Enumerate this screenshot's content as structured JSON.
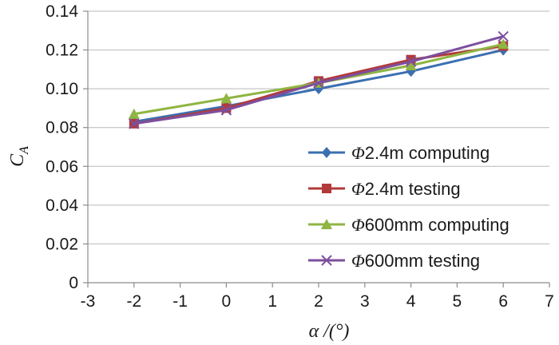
{
  "chart_data": {
    "type": "line",
    "title": "",
    "xlabel": "α /(°)",
    "ylabel": "C_A",
    "ylabel_main": "C",
    "ylabel_sub": "A",
    "xlim": [
      -3,
      7
    ],
    "ylim": [
      0,
      0.14
    ],
    "x_ticks": [
      -3,
      -2,
      -1,
      0,
      1,
      2,
      3,
      4,
      5,
      6,
      7
    ],
    "x_tick_labels": [
      "-3",
      "-2",
      "-1",
      "0",
      "1",
      "2",
      "3",
      "4",
      "5",
      "6",
      "7"
    ],
    "y_ticks": [
      0,
      0.02,
      0.04,
      0.06,
      0.08,
      0.1,
      0.12,
      0.14
    ],
    "y_tick_labels": [
      "0",
      "0.02",
      "0.04",
      "0.06",
      "0.08",
      "0.10",
      "0.12",
      "0.14"
    ],
    "grid": true,
    "legend_position": "bottom-right",
    "x": [
      -2,
      0,
      2,
      4,
      6
    ],
    "series": [
      {
        "name": "Φ2.4m computing",
        "name_symbol": "Φ",
        "name_rest": "2.4m computing",
        "color": "#3b6fb0",
        "marker": "diamond",
        "values": [
          0.083,
          0.091,
          0.1,
          0.109,
          0.12
        ]
      },
      {
        "name": "Φ2.4m testing",
        "name_symbol": "Φ",
        "name_rest": "2.4m testing",
        "color": "#b23a3a",
        "marker": "square",
        "values": [
          0.082,
          0.09,
          0.104,
          0.115,
          0.122
        ]
      },
      {
        "name": "Φ600mm computing",
        "name_symbol": "Φ",
        "name_rest": "600mm computing",
        "color": "#8fb542",
        "marker": "triangle",
        "values": [
          0.087,
          0.095,
          0.103,
          0.112,
          0.123
        ]
      },
      {
        "name": "Φ600mm testing",
        "name_symbol": "Φ",
        "name_rest": "600mm testing",
        "color": "#7d4f9e",
        "marker": "x",
        "values": [
          0.082,
          0.089,
          0.103,
          0.114,
          0.127
        ]
      }
    ]
  }
}
